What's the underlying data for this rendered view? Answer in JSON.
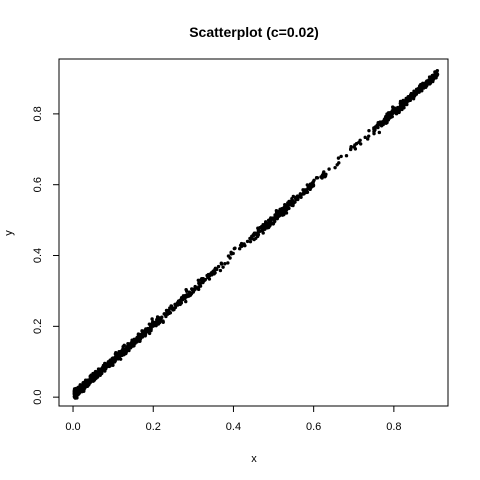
{
  "chart_data": {
    "type": "scatter",
    "title": "Scatterplot (c=0.02)",
    "xlabel": "x",
    "ylabel": "y",
    "xlim": [
      -0.035,
      0.935
    ],
    "ylim": [
      -0.025,
      0.955
    ],
    "xticks": [
      0.0,
      0.2,
      0.4,
      0.6,
      0.8
    ],
    "yticks": [
      0.0,
      0.2,
      0.4,
      0.6,
      0.8
    ],
    "xtick_labels": [
      "0.0",
      "0.2",
      "0.4",
      "0.6",
      "0.8"
    ],
    "ytick_labels": [
      "0.0",
      "0.2",
      "0.4",
      "0.6",
      "0.8"
    ],
    "grid": false,
    "legend": "none",
    "point_color": "#000000",
    "point_count": 1300,
    "relationship": "y approximately equals x, tight spread around c = 0.02",
    "clusters": [
      {
        "x_range": [
          0.0,
          0.22
        ],
        "weight": 0.52
      },
      {
        "x_range": [
          0.22,
          0.3
        ],
        "weight": 0.05
      },
      {
        "x_range": [
          0.3,
          0.36
        ],
        "weight": 0.035
      },
      {
        "x_range": [
          0.36,
          0.45
        ],
        "weight": 0.02
      },
      {
        "x_range": [
          0.45,
          0.6
        ],
        "weight": 0.15
      },
      {
        "x_range": [
          0.6,
          0.75
        ],
        "weight": 0.025
      },
      {
        "x_range": [
          0.75,
          0.91
        ],
        "weight": 0.2
      }
    ]
  }
}
